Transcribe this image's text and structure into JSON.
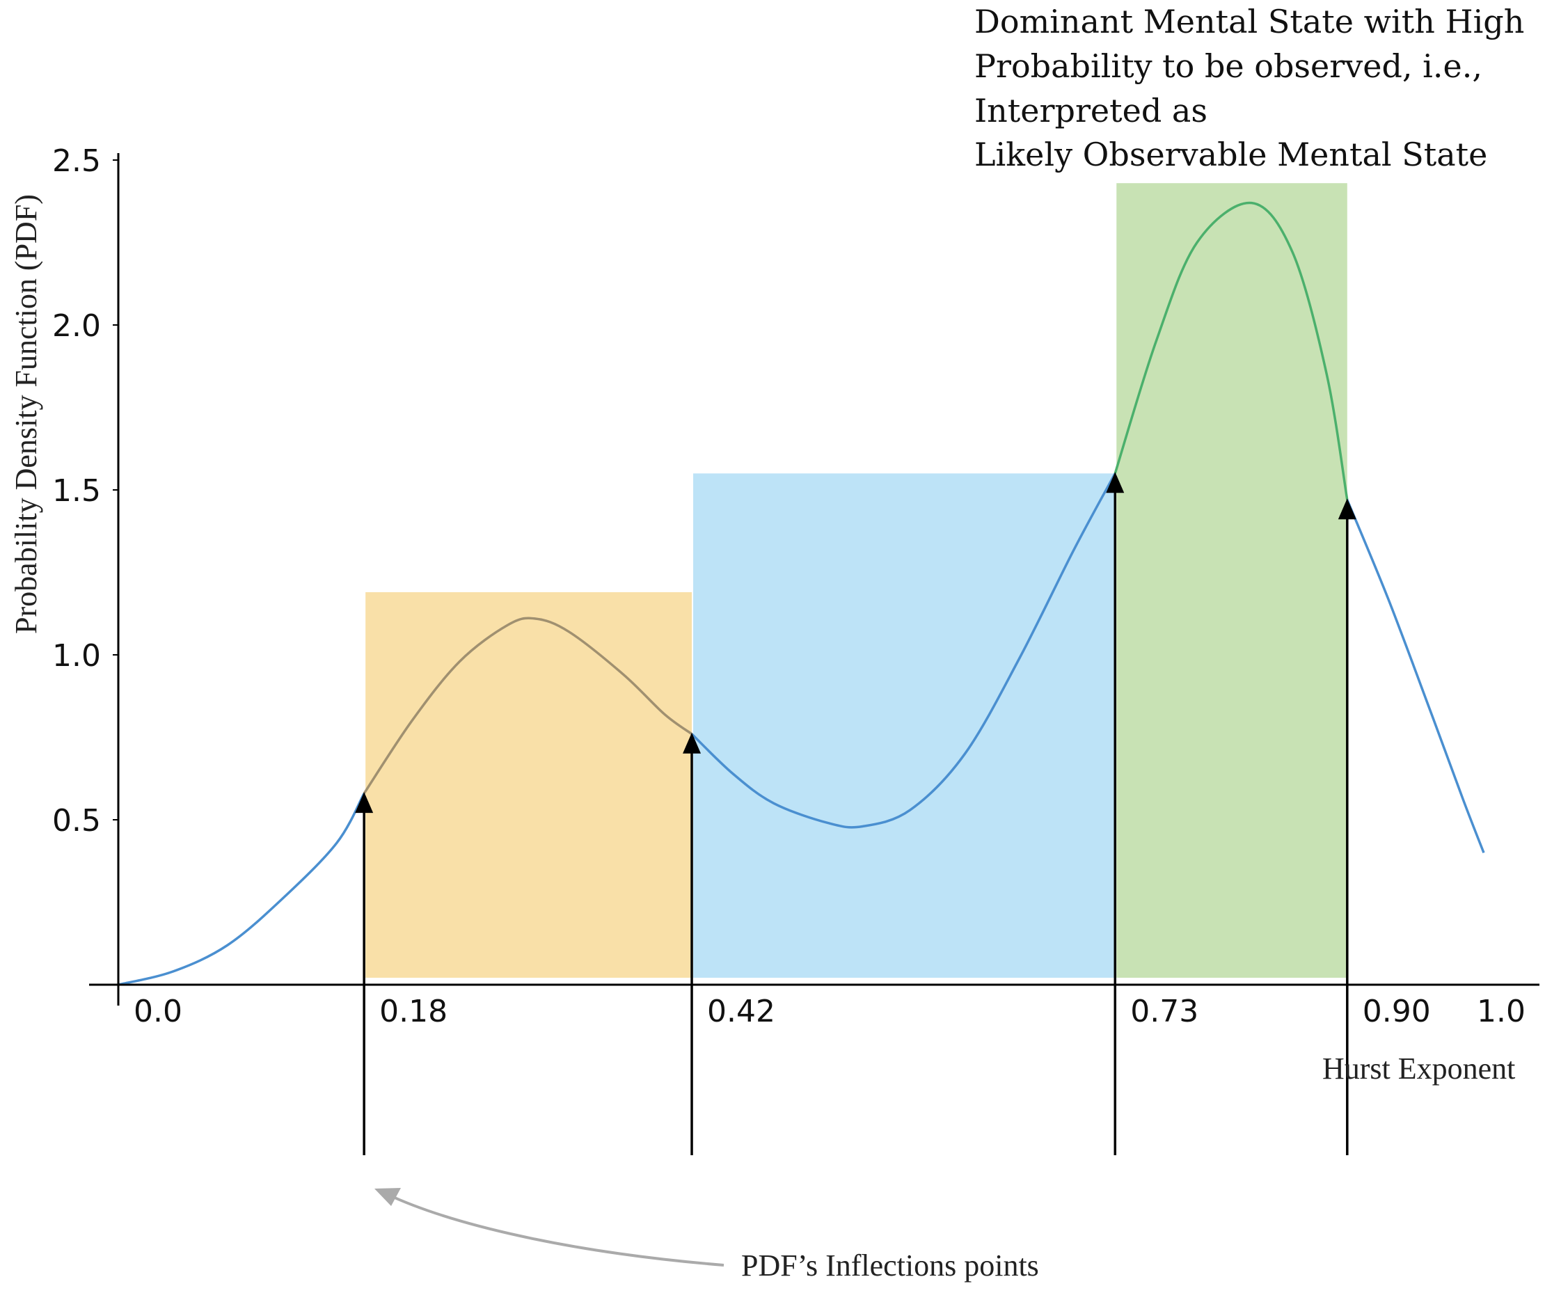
{
  "chart_data": {
    "type": "line",
    "title": "",
    "xlabel": "Hurst Exponent",
    "ylabel": "Probability Density Function (PDF)",
    "xlim": [
      0.0,
      1.0
    ],
    "ylim": [
      0.0,
      2.5
    ],
    "y_ticks": [
      "0.5",
      "1.0",
      "1.5",
      "2.0",
      "2.5"
    ],
    "x_ticks": [
      {
        "value": 0.0,
        "label": "0.0"
      },
      {
        "value": 1.0,
        "label": "1.0"
      }
    ],
    "inflection_points": [
      {
        "x_label": "0.18",
        "y": 0.58
      },
      {
        "x_label": "0.42",
        "y": 0.76
      },
      {
        "x_label": "0.73",
        "y": 1.55
      },
      {
        "x_label": "0.90",
        "y": 1.47
      }
    ],
    "regions": [
      {
        "from": "0.18",
        "to": "0.42",
        "height": 1.19,
        "color": "#f9e0a8"
      },
      {
        "from": "0.42",
        "to": "0.73",
        "height": 1.55,
        "color": "#bde3f7"
      },
      {
        "from": "0.73",
        "to": "0.90",
        "height": 2.43,
        "color": "#c8e2b4"
      }
    ],
    "curve_points": [
      [
        0.0,
        0.0
      ],
      [
        0.04,
        0.04
      ],
      [
        0.08,
        0.12
      ],
      [
        0.12,
        0.26
      ],
      [
        0.16,
        0.43
      ],
      [
        0.18,
        0.58
      ],
      [
        0.215,
        0.8
      ],
      [
        0.25,
        0.98
      ],
      [
        0.285,
        1.09
      ],
      [
        0.305,
        1.11
      ],
      [
        0.33,
        1.07
      ],
      [
        0.37,
        0.94
      ],
      [
        0.4,
        0.82
      ],
      [
        0.42,
        0.76
      ],
      [
        0.45,
        0.64
      ],
      [
        0.48,
        0.55
      ],
      [
        0.52,
        0.49
      ],
      [
        0.545,
        0.48
      ],
      [
        0.58,
        0.53
      ],
      [
        0.62,
        0.7
      ],
      [
        0.66,
        0.99
      ],
      [
        0.7,
        1.32
      ],
      [
        0.73,
        1.55
      ],
      [
        0.76,
        1.95
      ],
      [
        0.79,
        2.25
      ],
      [
        0.83,
        2.37
      ],
      [
        0.86,
        2.22
      ],
      [
        0.885,
        1.85
      ],
      [
        0.9,
        1.47
      ],
      [
        0.93,
        1.17
      ],
      [
        0.96,
        0.84
      ],
      [
        0.985,
        0.56
      ],
      [
        1.0,
        0.4
      ]
    ],
    "curve_color": "#4a8fd0",
    "curve_color_peak": "#4bb06c",
    "curve_color_first_peak": "#a09070",
    "grid": false,
    "legend": "none",
    "annotations": {
      "dominant": [
        "Dominant Mental State with High",
        "Probability to be observed, i.e.,",
        "Interpreted as",
        "Likely Observable Mental State"
      ],
      "inflections": "PDF’s Inflections points"
    }
  }
}
